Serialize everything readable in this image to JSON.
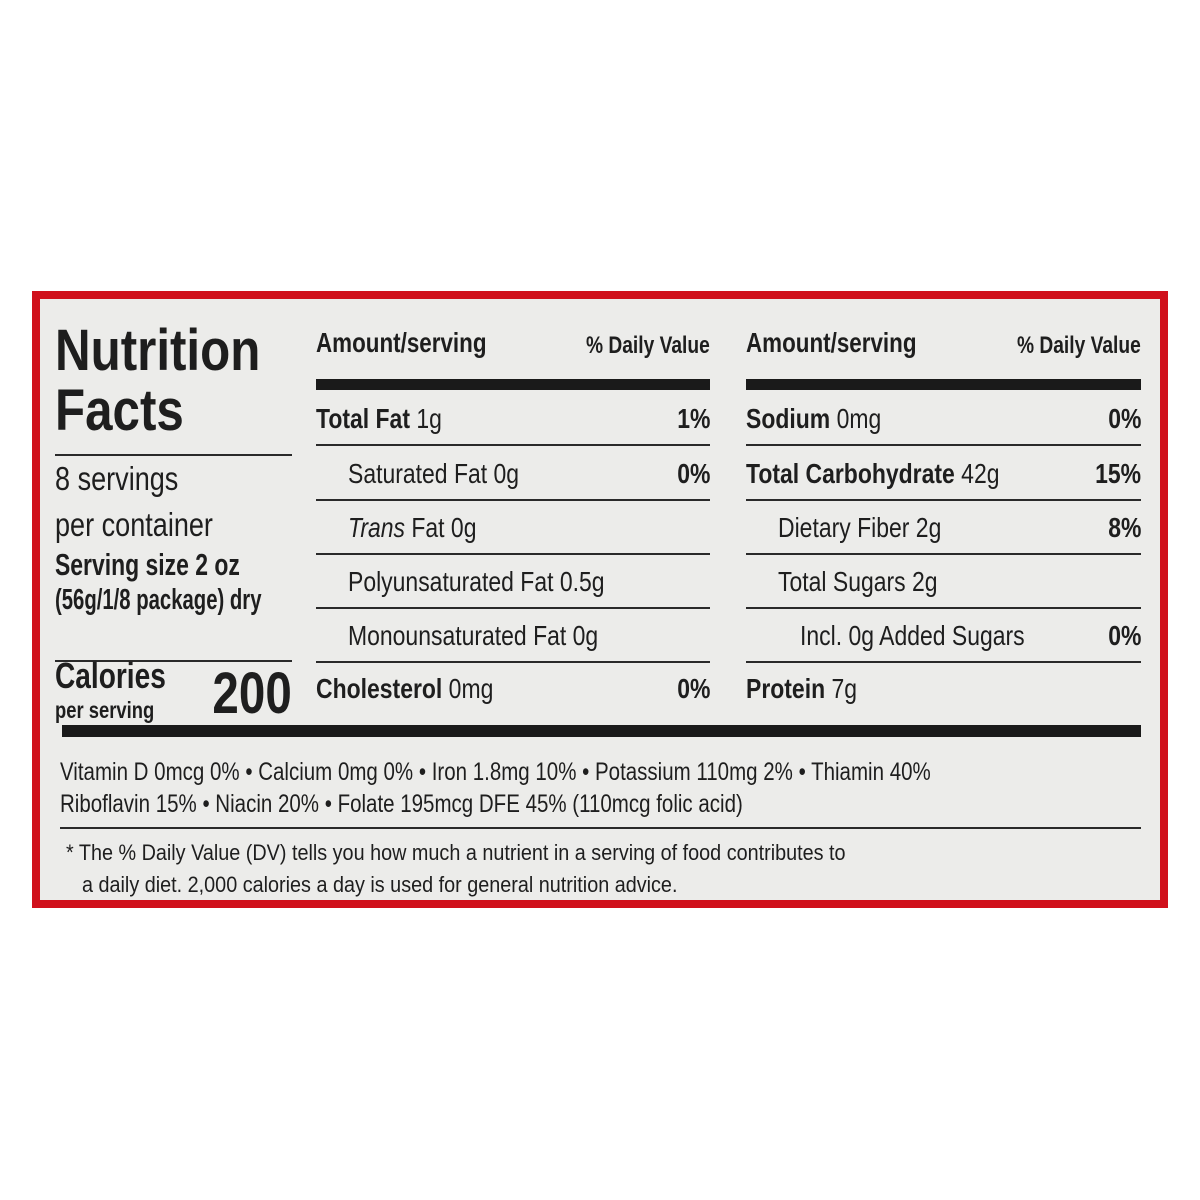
{
  "title_line1": "Nutrition",
  "title_line2": "Facts",
  "servings_line1": "8 servings",
  "servings_line2": "per container",
  "serving_size_line1": "Serving size 2 oz",
  "serving_size_line2": "(56g/1/8 package) dry",
  "calories_label": "Calories",
  "calories_sub": "per serving",
  "calories_value": "200",
  "header": {
    "amount": "Amount/serving",
    "dv": "% Daily Value"
  },
  "middle_rows": [
    {
      "name": "Total Fat",
      "amount": "1g",
      "dv": "1%"
    },
    {
      "name": "Saturated Fat",
      "amount": "0g",
      "dv": "0%"
    },
    {
      "name": "Trans",
      "name2": "Fat",
      "amount": "0g",
      "dv": ""
    },
    {
      "name": "Polyunsaturated Fat",
      "amount": "0.5g",
      "dv": ""
    },
    {
      "name": "Monounsaturated Fat",
      "amount": "0g",
      "dv": ""
    },
    {
      "name": "Cholesterol",
      "amount": "0mg",
      "dv": "0%"
    }
  ],
  "right_rows": [
    {
      "name": "Sodium",
      "amount": "0mg",
      "dv": "0%"
    },
    {
      "name": "Total Carbohydrate",
      "amount": "42g",
      "dv": "15%"
    },
    {
      "name": "Dietary Fiber",
      "amount": "2g",
      "dv": "8%"
    },
    {
      "name": "Total Sugars",
      "amount": "2g",
      "dv": ""
    },
    {
      "name": "Incl. 0g Added Sugars",
      "amount": "",
      "dv": "0%"
    },
    {
      "name": "Protein",
      "amount": "7g",
      "dv": ""
    }
  ],
  "vitamins_line1": "Vitamin D 0mcg 0% • Calcium 0mg 0% • Iron 1.8mg 10% • Potassium 110mg 2% • Thiamin 40%",
  "vitamins_line2": "Riboflavin 15% • Niacin 20% • Folate 195mcg DFE 45% (110mcg folic acid)",
  "footnote_line1": "* The % Daily Value (DV) tells you how much a nutrient in a serving of food contributes to",
  "footnote_line2": "a daily diet. 2,000 calories a day is used for general nutrition advice.",
  "colors": {
    "border": "#d0101b",
    "background": "#ececea",
    "text": "#1e1e1e"
  }
}
